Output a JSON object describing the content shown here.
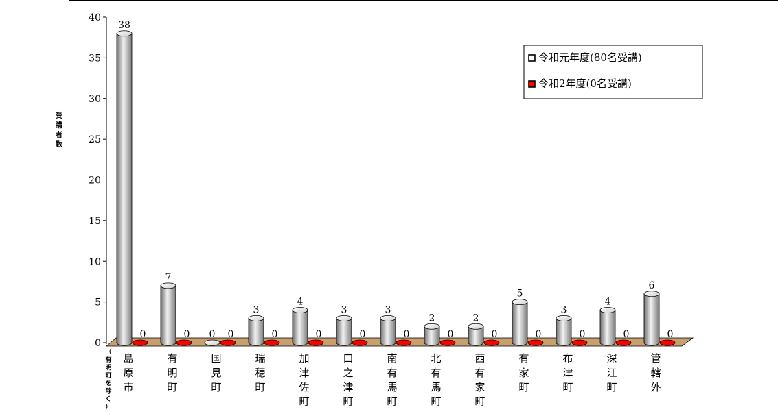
{
  "chart_data": {
    "type": "bar",
    "ylabel": "受講者数",
    "ylim": [
      0,
      40
    ],
    "yticks": [
      0,
      5,
      10,
      15,
      20,
      25,
      30,
      35,
      40
    ],
    "categories": [
      "島原市",
      "有明町",
      "国見町",
      "瑞穂町",
      "加津佐町",
      "口之津町",
      "南有馬町",
      "北有馬町",
      "西有家町",
      "有家町",
      "布津町",
      "深江町",
      "管轄外"
    ],
    "category_note": "（有明町を除く）",
    "series": [
      {
        "name": "令和元年度(80名受講)",
        "values": [
          38,
          7,
          0,
          3,
          4,
          3,
          3,
          2,
          2,
          5,
          3,
          4,
          6
        ],
        "color": "#c0c0c0"
      },
      {
        "name": "令和2年度(0名受講)",
        "values": [
          0,
          0,
          0,
          0,
          0,
          0,
          0,
          0,
          0,
          0,
          0,
          0,
          0
        ],
        "color": "#ff0000"
      }
    ],
    "legend_position": "top-right",
    "grid": false,
    "floor_color": "#c8a070"
  }
}
